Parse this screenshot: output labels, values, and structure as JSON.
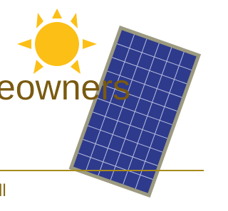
{
  "heading": "eowners",
  "footer_text": "ll"
}
